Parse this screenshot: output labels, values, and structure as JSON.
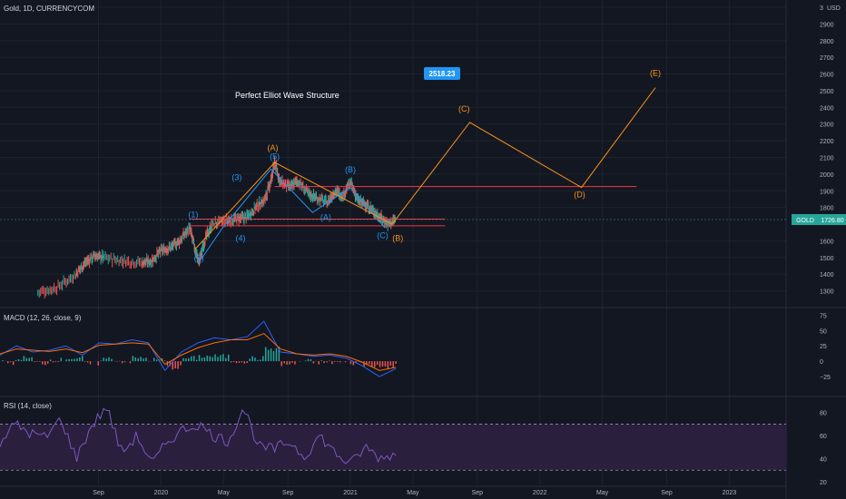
{
  "header": {
    "symbol": "Gold, 1D, CURRENCYCOM",
    "annotation": "Perfect Elliot Wave Structure",
    "price_badge": "2518.23",
    "current_label": "GOLD",
    "current_price": "1726.80"
  },
  "colors": {
    "background": "#131722",
    "grid": "#1e222d",
    "candle_up": "#26a69a",
    "candle_down": "#ef5350",
    "projection": "#f7931a",
    "wave_blue": "#2196f3",
    "hline": "#f23645",
    "macd_line": "#2962ff",
    "signal_line": "#ff6d00",
    "rsi_line": "#7e57c2",
    "rsi_band": "#2a1f3d",
    "badge": "#2196f3",
    "current_badge": "#26a69a"
  },
  "chart_data": [
    {
      "type": "line",
      "name": "price-pane",
      "price_axis": {
        "ticks": [
          "3",
          "2900",
          "2800",
          "2700",
          "2600",
          "2500",
          "2400",
          "2300",
          "2200",
          "2100",
          "2000",
          "1900",
          "1800",
          "1600",
          "1500",
          "1400",
          "1300"
        ],
        "unit_label": "USD"
      },
      "price_scale": {
        "ylim": [
          1200,
          3000
        ]
      },
      "time_axis": [
        "Sep",
        "2020",
        "May",
        "Sep",
        "2021",
        "May",
        "Sep",
        "2022",
        "May",
        "Sep",
        "2023"
      ],
      "price_path": [
        [
          2019.35,
          1290
        ],
        [
          2019.45,
          1320
        ],
        [
          2019.55,
          1400
        ],
        [
          2019.6,
          1470
        ],
        [
          2019.65,
          1510
        ],
        [
          2019.7,
          1500
        ],
        [
          2019.8,
          1480
        ],
        [
          2019.9,
          1470
        ],
        [
          2019.95,
          1480
        ],
        [
          2020.0,
          1540
        ],
        [
          2020.05,
          1560
        ],
        [
          2020.1,
          1600
        ],
        [
          2020.15,
          1680
        ],
        [
          2020.18,
          1550
        ],
        [
          2020.2,
          1470
        ],
        [
          2020.23,
          1600
        ],
        [
          2020.27,
          1700
        ],
        [
          2020.35,
          1720
        ],
        [
          2020.4,
          1730
        ],
        [
          2020.45,
          1740
        ],
        [
          2020.5,
          1800
        ],
        [
          2020.55,
          1850
        ],
        [
          2020.58,
          1960
        ],
        [
          2020.6,
          2070
        ],
        [
          2020.63,
          1950
        ],
        [
          2020.68,
          1920
        ],
        [
          2020.72,
          1960
        ],
        [
          2020.78,
          1880
        ],
        [
          2020.82,
          1860
        ],
        [
          2020.88,
          1830
        ],
        [
          2020.92,
          1900
        ],
        [
          2020.96,
          1870
        ],
        [
          2021.0,
          1950
        ],
        [
          2021.04,
          1840
        ],
        [
          2021.08,
          1820
        ],
        [
          2021.12,
          1780
        ],
        [
          2021.16,
          1740
        ],
        [
          2021.2,
          1700
        ],
        [
          2021.24,
          1730
        ]
      ],
      "wave_labels_blue": [
        {
          "t": "(1)",
          "x": 2020.17,
          "y": 1740
        },
        {
          "t": "(2)",
          "x": 2020.2,
          "y": 1480
        },
        {
          "t": "(3)",
          "x": 2020.4,
          "y": 1965
        },
        {
          "t": "(4)",
          "x": 2020.42,
          "y": 1600
        },
        {
          "t": "(5)",
          "x": 2020.6,
          "y": 2090
        },
        {
          "t": "(A)",
          "x": 2020.87,
          "y": 1725
        },
        {
          "t": "(B)",
          "x": 2021.0,
          "y": 2010
        },
        {
          "t": "(C)",
          "x": 2021.17,
          "y": 1615
        }
      ],
      "wave_labels_orange": [
        {
          "t": "(A)",
          "x": 2020.59,
          "y": 2140
        },
        {
          "t": "(B)",
          "x": 2021.25,
          "y": 1600
        },
        {
          "t": "(C)",
          "x": 2021.6,
          "y": 2375
        },
        {
          "t": "(D)",
          "x": 2022.21,
          "y": 1860
        },
        {
          "t": "(E)",
          "x": 2022.61,
          "y": 2590
        }
      ],
      "wave_path_orange": [
        [
          2020.18,
          1550
        ],
        [
          2020.6,
          2070
        ],
        [
          2021.22,
          1700
        ],
        [
          2021.63,
          2310
        ],
        [
          2022.22,
          1920
        ],
        [
          2022.61,
          2518
        ]
      ],
      "wave_path_blue": [
        [
          2020.2,
          1470
        ],
        [
          2020.32,
          1670
        ],
        [
          2020.58,
          2030
        ],
        [
          2020.8,
          1770
        ],
        [
          2021.0,
          1920
        ],
        [
          2021.18,
          1680
        ]
      ],
      "hlines": [
        {
          "y": 1925,
          "x1": 2020.6,
          "x2": 2022.51
        },
        {
          "y": 1730,
          "x1": 2020.15,
          "x2": 2021.5
        },
        {
          "y": 1690,
          "x1": 2020.15,
          "x2": 2021.5
        }
      ]
    },
    {
      "type": "line",
      "name": "macd-pane",
      "title": "MACD (12, 26, close, 9)",
      "yticks": [
        "75",
        "50",
        "25",
        "0",
        "−25"
      ],
      "ylim": [
        -50,
        80
      ],
      "series": [
        {
          "values": [
            10,
            25,
            15,
            18,
            25,
            10,
            30,
            28,
            35,
            30,
            -15,
            15,
            30,
            38,
            35,
            40,
            65,
            15,
            12,
            8,
            10,
            5,
            -8,
            -25,
            -12
          ]
        },
        {
          "values": [
            12,
            20,
            18,
            16,
            20,
            14,
            26,
            28,
            30,
            28,
            -5,
            10,
            22,
            30,
            35,
            35,
            45,
            20,
            12,
            10,
            12,
            8,
            -2,
            -15,
            -10
          ]
        }
      ]
    },
    {
      "type": "line",
      "name": "rsi-pane",
      "title": "RSI (14, close)",
      "yticks": [
        "80",
        "60",
        "40",
        "20"
      ],
      "ylim": [
        20,
        90
      ],
      "band": [
        30,
        70
      ],
      "series": [
        {
          "values": [
            55,
            70,
            62,
            58,
            75,
            40,
            68,
            85,
            45,
            60,
            35,
            55,
            65,
            70,
            60,
            55,
            85,
            50,
            48,
            55,
            42,
            60,
            45,
            35,
            50,
            40,
            45
          ]
        }
      ]
    }
  ]
}
